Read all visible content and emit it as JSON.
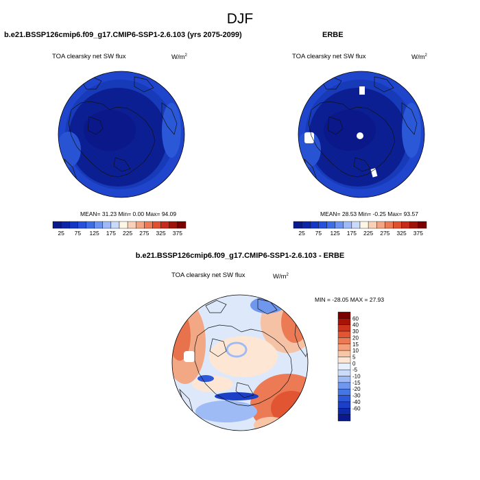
{
  "season": "DJF",
  "colors": {
    "top_scale": [
      "#0a1a8c",
      "#0b24a8",
      "#1436c4",
      "#2651db",
      "#3e6ee6",
      "#6b93f0",
      "#9db9f7",
      "#c9dafb",
      "#fdf6e4",
      "#f8d1b6",
      "#f3a583",
      "#ec7a55",
      "#e0502f",
      "#c7291a",
      "#9e1208",
      "#7a0000"
    ],
    "diff_scale": [
      "#0a1a8c",
      "#0f2aa8",
      "#1b3fc6",
      "#2c58d9",
      "#4676e6",
      "#7097ee",
      "#9fbbf5",
      "#cadcfa",
      "#e7f0fd",
      "#fde7d4",
      "#f8c6a7",
      "#f3a07b",
      "#ec7b55",
      "#e25532",
      "#cc321c",
      "#a81308",
      "#7a0000"
    ],
    "coast": "#111111"
  },
  "panels": {
    "left": {
      "title": "b.e21.BSSP126cmip6.f09_g17.CMIP6-SSP1-2.6.103 (yrs 2075-2099)",
      "variable": "TOA clearsky net SW flux",
      "units": "W/m",
      "units_exp": "2",
      "stats": "MEAN=  31.23  Min=   0.00  Max=  94.09"
    },
    "right": {
      "title": "ERBE",
      "variable": "TOA clearsky net SW flux",
      "units": "W/m",
      "units_exp": "2",
      "stats": "MEAN=  28.53  Min=  -0.25  Max=  93.57"
    },
    "diff": {
      "title": "b.e21.BSSP126cmip6.f09_g17.CMIP6-SSP1-2.6.103 - ERBE",
      "variable": "TOA clearsky net SW flux",
      "units": "W/m",
      "units_exp": "2",
      "stats": "MIN = -28.05 MAX =  27.93"
    }
  },
  "chart_data": [
    {
      "type": "heatmap",
      "projection": "north polar stereographic",
      "title": "b.e21.BSSP126cmip6.f09_g17.CMIP6-SSP1-2.6.103 (yrs 2075-2099)",
      "variable": "TOA clearsky net SW flux",
      "units": "W/m2",
      "mean": 31.23,
      "min": 0.0,
      "max": 94.09,
      "colorbar_labels": [
        "25",
        "75",
        "125",
        "175",
        "225",
        "275",
        "325",
        "375"
      ],
      "colorbar_levels": [
        25,
        50,
        75,
        100,
        125,
        150,
        175,
        200,
        225,
        250,
        275,
        300,
        325,
        350,
        375
      ]
    },
    {
      "type": "heatmap",
      "projection": "north polar stereographic",
      "title": "ERBE",
      "variable": "TOA clearsky net SW flux",
      "units": "W/m2",
      "mean": 28.53,
      "min": -0.25,
      "max": 93.57,
      "colorbar_labels": [
        "25",
        "75",
        "125",
        "175",
        "225",
        "275",
        "325",
        "375"
      ],
      "colorbar_levels": [
        25,
        50,
        75,
        100,
        125,
        150,
        175,
        200,
        225,
        250,
        275,
        300,
        325,
        350,
        375
      ]
    },
    {
      "type": "heatmap",
      "projection": "north polar stereographic",
      "title": "b.e21.BSSP126cmip6.f09_g17.CMIP6-SSP1-2.6.103 - ERBE",
      "variable": "TOA clearsky net SW flux",
      "units": "W/m2",
      "min": -28.05,
      "max": 27.93,
      "colorbar_labels": [
        "60",
        "40",
        "30",
        "20",
        "15",
        "10",
        "5",
        "0",
        "-5",
        "-10",
        "-15",
        "-20",
        "-30",
        "-40",
        "-60"
      ]
    }
  ]
}
